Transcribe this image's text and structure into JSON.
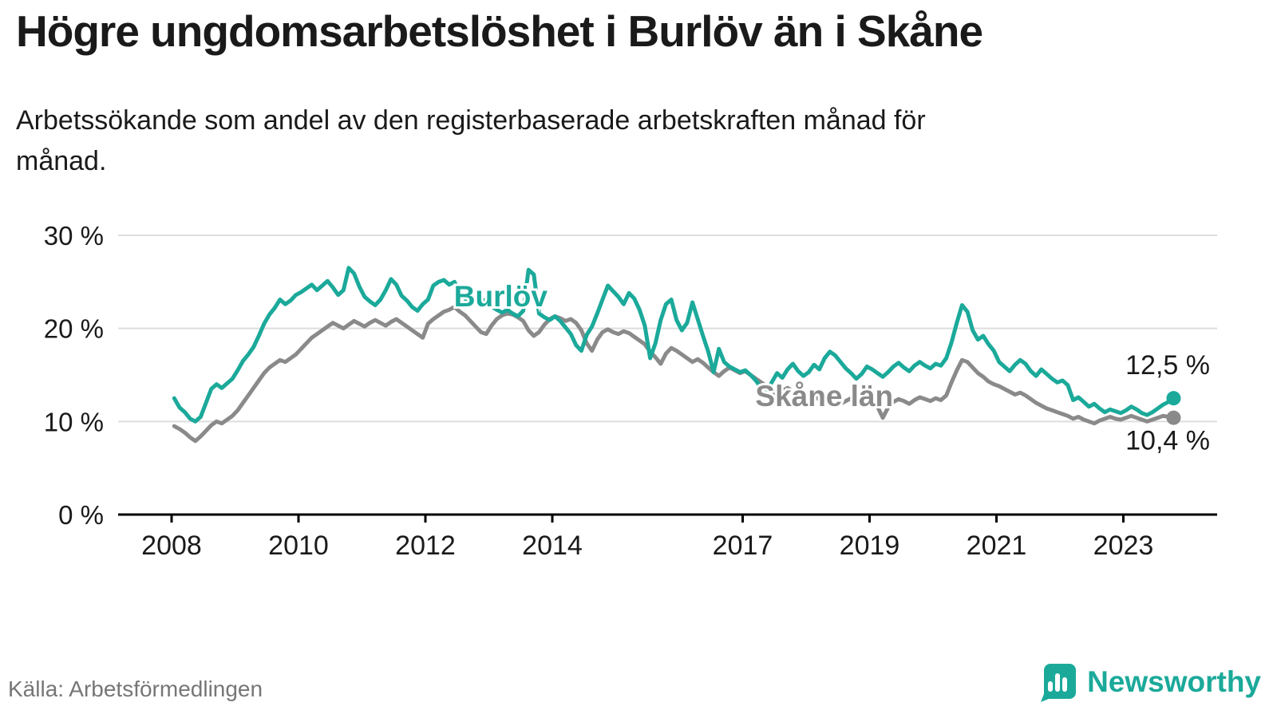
{
  "title": "Högre ungdomsarbetslöshet i Burlöv än i Skåne",
  "subtitle": "Arbetssökande som andel av den registerbaserade arbetskraften månad för månad.",
  "source": "Källa: Arbetsförmedlingen",
  "branding": {
    "name": "Newsworthy",
    "icon": "bar-chart-bubble-icon",
    "color": "#1ba99a"
  },
  "colors": {
    "burlov_line": "#1ba99a",
    "skane_line": "#8a8a8a",
    "grid": "#dddddd",
    "axis": "#000000",
    "text": "#1a1a1a"
  },
  "chart_data": {
    "type": "line",
    "title": "Högre ungdomsarbetslöshet i Burlöv än i Skåne",
    "xlabel": "",
    "ylabel": "Arbetssökande som andel av den registerbaserade arbetskraften",
    "frequency": "monthly",
    "start_year": 2008,
    "x_ticks": [
      2008,
      2010,
      2012,
      2014,
      2017,
      2019,
      2021,
      2023
    ],
    "y_ticks": [
      0,
      10,
      20,
      30
    ],
    "y_tick_labels": [
      "0 %",
      "10 %",
      "20 %",
      "30 %"
    ],
    "ylim": [
      0,
      32
    ],
    "grid": true,
    "legend_position": "inline",
    "series": [
      {
        "name": "Skåne län",
        "color": "#8a8a8a",
        "end_label": "10,4 %",
        "end_value": 10.4,
        "label_pos": {
          "year": 2017.2,
          "value": 12.7
        },
        "values": [
          9.5,
          9.2,
          8.8,
          8.3,
          7.9,
          8.4,
          9.0,
          9.6,
          10.0,
          9.8,
          10.2,
          10.6,
          11.2,
          12.0,
          12.8,
          13.6,
          14.4,
          15.2,
          15.8,
          16.2,
          16.6,
          16.4,
          16.8,
          17.2,
          17.8,
          18.4,
          19.0,
          19.4,
          19.8,
          20.2,
          20.6,
          20.3,
          20.0,
          20.4,
          20.8,
          20.5,
          20.2,
          20.6,
          20.9,
          20.6,
          20.3,
          20.7,
          21.0,
          20.6,
          20.2,
          19.8,
          19.4,
          19.0,
          20.5,
          21.0,
          21.4,
          21.8,
          22.0,
          22.3,
          21.8,
          21.4,
          20.8,
          20.2,
          19.6,
          19.4,
          20.3,
          21.0,
          21.4,
          21.6,
          21.5,
          21.2,
          20.8,
          19.8,
          19.2,
          19.6,
          20.4,
          21.0,
          21.3,
          21.1,
          20.8,
          21.0,
          20.6,
          19.8,
          18.4,
          17.6,
          18.8,
          19.6,
          19.9,
          19.6,
          19.4,
          19.7,
          19.5,
          19.1,
          18.7,
          18.3,
          17.5,
          16.9,
          16.2,
          17.3,
          17.9,
          17.6,
          17.2,
          16.8,
          16.4,
          16.7,
          16.3,
          15.8,
          15.3,
          14.9,
          15.4,
          15.8,
          15.5,
          15.2,
          15.4,
          15.0,
          14.6,
          14.2,
          13.8,
          13.4,
          12.9,
          13.3,
          13.6,
          13.3,
          13.0,
          12.8,
          12.9,
          12.6,
          12.4,
          12.7,
          12.5,
          12.2,
          11.9,
          12.2,
          12.5,
          12.3,
          12.0,
          11.8,
          12.0,
          11.6,
          10.4,
          11.5,
          12.1,
          12.4,
          12.2,
          11.9,
          12.3,
          12.6,
          12.4,
          12.2,
          12.5,
          12.3,
          12.8,
          14.2,
          15.5,
          16.6,
          16.4,
          15.8,
          15.2,
          14.8,
          14.3,
          14.0,
          13.8,
          13.5,
          13.2,
          12.9,
          13.1,
          12.8,
          12.4,
          12.0,
          11.7,
          11.4,
          11.2,
          11.0,
          10.8,
          10.6,
          10.3,
          10.5,
          10.2,
          10.0,
          9.8,
          10.1,
          10.3,
          10.5,
          10.3,
          10.2,
          10.4,
          10.6,
          10.4,
          10.2,
          10.0,
          10.2,
          10.4,
          10.6,
          10.5,
          10.4
        ]
      },
      {
        "name": "Burlöv",
        "color": "#1ba99a",
        "end_label": "12,5 %",
        "end_value": 12.5,
        "label_pos": {
          "year": 2012.45,
          "value": 23.4
        },
        "values": [
          12.5,
          11.5,
          11.0,
          10.3,
          10.0,
          10.5,
          12.0,
          13.5,
          14.0,
          13.6,
          14.1,
          14.6,
          15.5,
          16.5,
          17.2,
          18.0,
          19.2,
          20.5,
          21.5,
          22.2,
          23.1,
          22.6,
          23.0,
          23.6,
          23.9,
          24.3,
          24.7,
          24.1,
          24.6,
          25.1,
          24.4,
          23.6,
          24.1,
          26.5,
          25.9,
          24.5,
          23.4,
          22.9,
          22.5,
          23.1,
          24.1,
          25.3,
          24.7,
          23.5,
          23.0,
          22.3,
          21.9,
          22.6,
          23.1,
          24.6,
          25.0,
          25.2,
          24.7,
          25.0,
          23.8,
          23.2,
          22.7,
          23.0,
          23.3,
          22.7,
          22.4,
          22.0,
          21.7,
          22.0,
          21.6,
          21.3,
          21.9,
          26.3,
          25.8,
          21.6,
          21.2,
          20.9,
          21.3,
          20.8,
          20.1,
          19.4,
          18.2,
          17.6,
          19.3,
          20.2,
          21.6,
          23.1,
          24.6,
          24.0,
          23.4,
          22.6,
          23.8,
          23.2,
          22.0,
          20.3,
          16.8,
          18.4,
          20.9,
          22.6,
          23.1,
          20.9,
          19.8,
          20.6,
          22.8,
          21.0,
          19.2,
          17.5,
          15.3,
          17.8,
          16.4,
          15.9,
          15.6,
          15.3,
          15.5,
          15.0,
          14.4,
          13.6,
          13.2,
          14.2,
          15.2,
          14.7,
          15.6,
          16.2,
          15.4,
          14.9,
          15.3,
          16.1,
          15.6,
          16.8,
          17.5,
          17.1,
          16.4,
          15.7,
          15.2,
          14.6,
          15.1,
          15.9,
          15.6,
          15.2,
          14.8,
          15.3,
          15.9,
          16.3,
          15.8,
          15.4,
          16.0,
          16.4,
          16.0,
          15.7,
          16.2,
          16.0,
          16.8,
          18.5,
          20.6,
          22.5,
          21.8,
          19.8,
          18.8,
          19.2,
          18.3,
          17.6,
          16.4,
          15.9,
          15.4,
          16.1,
          16.6,
          16.2,
          15.4,
          14.9,
          15.6,
          15.1,
          14.6,
          14.2,
          14.4,
          13.9,
          12.3,
          12.6,
          12.1,
          11.6,
          11.9,
          11.4,
          11.0,
          11.3,
          11.1,
          10.9,
          11.2,
          11.6,
          11.3,
          10.9,
          10.7,
          11.0,
          11.4,
          11.8,
          12.1,
          12.5
        ]
      }
    ]
  }
}
